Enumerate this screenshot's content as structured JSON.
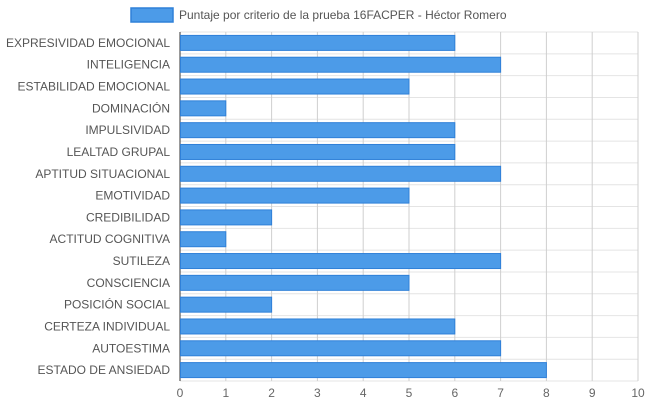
{
  "chart_data": {
    "type": "bar",
    "orientation": "horizontal",
    "categories": [
      "EXPRESIVIDAD EMOCIONAL",
      "INTELIGENCIA",
      "ESTABILIDAD EMOCIONAL",
      "DOMINACIÓN",
      "IMPULSIVIDAD",
      "LEALTAD GRUPAL",
      "APTITUD SITUACIONAL",
      "EMOTIVIDAD",
      "CREDIBILIDAD",
      "ACTITUD COGNITIVA",
      "SUTILEZA",
      "CONSCIENCIA",
      "POSICIÓN SOCIAL",
      "CERTEZA INDIVIDUAL",
      "AUTOESTIMA",
      "ESTADO DE ANSIEDAD"
    ],
    "series": [
      {
        "name": "Puntaje por criterio de la prueba 16FACPER - Héctor Romero",
        "values": [
          6,
          7,
          5,
          1,
          6,
          6,
          7,
          5,
          2,
          1,
          7,
          5,
          2,
          6,
          7,
          8
        ],
        "color": "#4c9be8",
        "border_color": "#2f80d8"
      }
    ],
    "x_ticks": [
      "0",
      "1",
      "2",
      "3",
      "4",
      "5",
      "6",
      "7",
      "8",
      "9",
      "10"
    ],
    "xlim": [
      0,
      10
    ],
    "grid": true,
    "legend_position": "top"
  }
}
